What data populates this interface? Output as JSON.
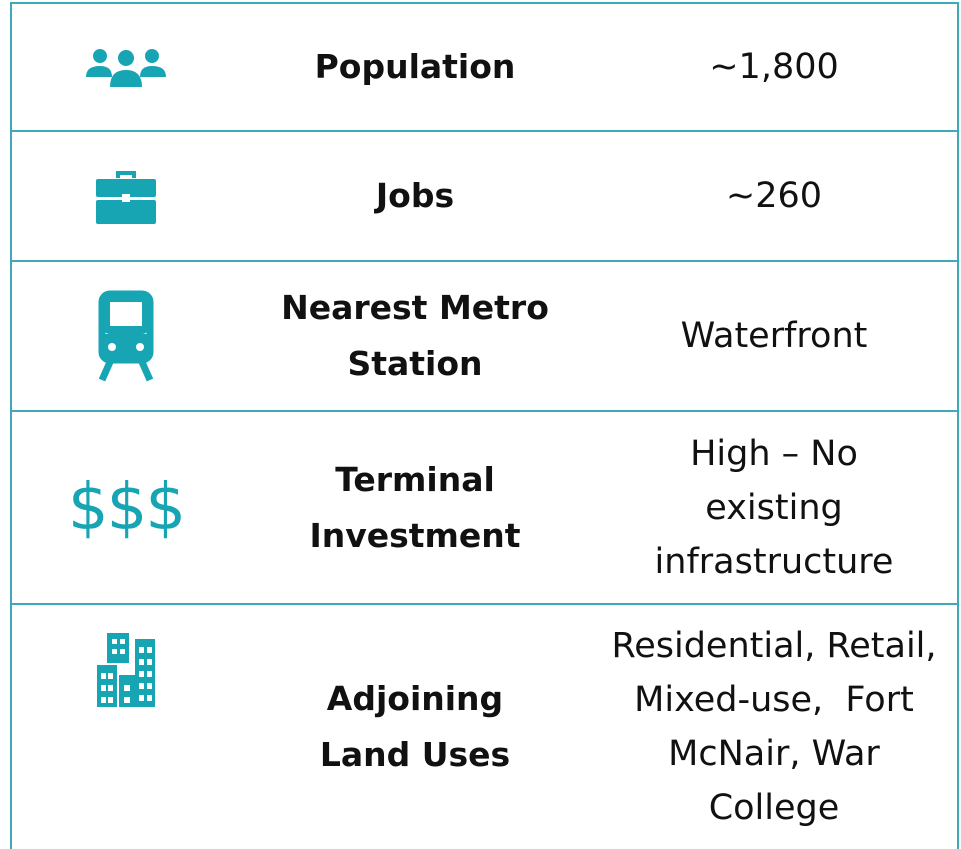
{
  "rows": [
    {
      "label": [
        "Population"
      ],
      "value": [
        "~1,800"
      ]
    },
    {
      "label": [
        "Jobs"
      ],
      "value": [
        "~260"
      ]
    },
    {
      "label": [
        "Nearest Metro",
        "Station"
      ],
      "value": [
        "Waterfront"
      ]
    },
    {
      "icon_text": "$$$",
      "label": [
        "Terminal",
        "Investment"
      ],
      "value": [
        "High – No",
        "existing",
        "infrastructure"
      ]
    },
    {
      "label": [
        "Adjoining",
        "Land Uses"
      ],
      "value": [
        "Residential, Retail,",
        "Mixed-use,  Fort",
        "McNair, War",
        "College"
      ]
    }
  ]
}
